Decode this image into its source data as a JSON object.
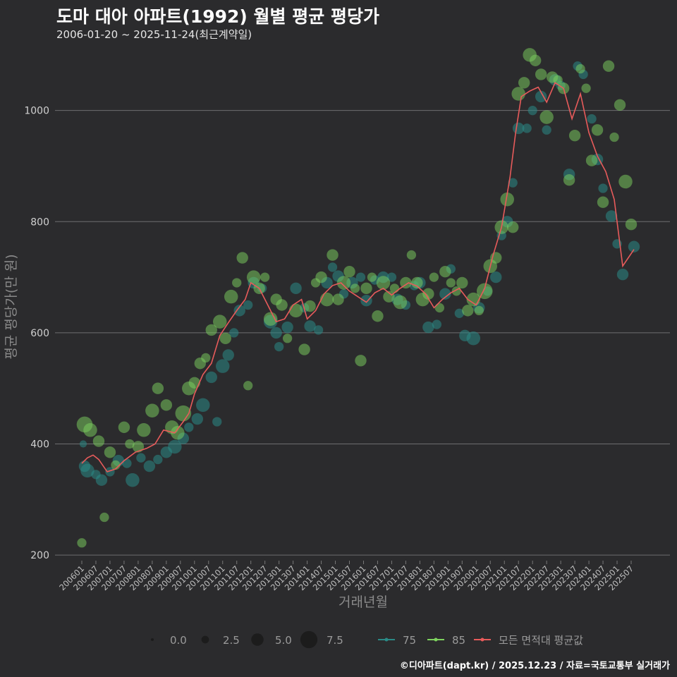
{
  "title": "도마 대아 아파트(1992) 월별 평균 평당가",
  "subtitle": "2006-01-20 ~ 2025-11-24(최근계약일)",
  "footer": "©디아파트(dapt.kr) / 2025.12.23 / 자료=국토교통부 실거래가",
  "colors": {
    "background": "#2b2b2d",
    "grid": "#6e6e70",
    "series_75": "#2a8a86",
    "series_85": "#7ed35f",
    "series_avg": "#e85b5b"
  },
  "chart_data": {
    "type": "scatter",
    "xlabel": "거래년월",
    "ylabel": "평균 평당가(만 원)",
    "ylim": [
      190,
      1110
    ],
    "yticks": [
      200,
      400,
      600,
      800,
      1000
    ],
    "xticks": [
      "200601",
      "200607",
      "200701",
      "200707",
      "200801",
      "200807",
      "200901",
      "200907",
      "201001",
      "201007",
      "201101",
      "201107",
      "201201",
      "201207",
      "201301",
      "201307",
      "201401",
      "201407",
      "201501",
      "201507",
      "201601",
      "201607",
      "201701",
      "201707",
      "201801",
      "201807",
      "201901",
      "201907",
      "202001",
      "202007",
      "202101",
      "202107",
      "202201",
      "202207",
      "202301",
      "202307",
      "202401",
      "202407",
      "202501",
      "202507"
    ],
    "size_legend": {
      "labels": [
        "0.0",
        "2.5",
        "5.0",
        "7.5"
      ],
      "values": [
        0,
        2.5,
        5,
        7.5
      ]
    },
    "series": [
      {
        "name": "75",
        "color": "#2a8a86"
      },
      {
        "name": "85",
        "color": "#7ed35f"
      },
      {
        "name": "모든 면적대 평균값",
        "color": "#e85b5b"
      }
    ],
    "avg_line": [
      [
        2006.0,
        365
      ],
      [
        2006.2,
        375
      ],
      [
        2006.4,
        380
      ],
      [
        2006.6,
        372
      ],
      [
        2006.9,
        350
      ],
      [
        2007.2,
        355
      ],
      [
        2007.5,
        370
      ],
      [
        2007.9,
        385
      ],
      [
        2008.3,
        392
      ],
      [
        2008.6,
        400
      ],
      [
        2008.9,
        425
      ],
      [
        2009.3,
        420
      ],
      [
        2009.6,
        440
      ],
      [
        2009.8,
        455
      ],
      [
        2010.0,
        490
      ],
      [
        2010.3,
        525
      ],
      [
        2010.6,
        545
      ],
      [
        2010.9,
        595
      ],
      [
        2011.2,
        618
      ],
      [
        2011.5,
        640
      ],
      [
        2011.8,
        660
      ],
      [
        2012.0,
        690
      ],
      [
        2012.3,
        680
      ],
      [
        2012.6,
        650
      ],
      [
        2012.9,
        620
      ],
      [
        2013.2,
        625
      ],
      [
        2013.5,
        650
      ],
      [
        2013.8,
        660
      ],
      [
        2014.0,
        625
      ],
      [
        2014.3,
        640
      ],
      [
        2014.6,
        670
      ],
      [
        2014.9,
        685
      ],
      [
        2015.2,
        690
      ],
      [
        2015.5,
        675
      ],
      [
        2015.8,
        665
      ],
      [
        2016.1,
        655
      ],
      [
        2016.4,
        672
      ],
      [
        2016.7,
        680
      ],
      [
        2017.0,
        668
      ],
      [
        2017.3,
        680
      ],
      [
        2017.6,
        690
      ],
      [
        2017.9,
        684
      ],
      [
        2018.2,
        670
      ],
      [
        2018.5,
        645
      ],
      [
        2018.8,
        660
      ],
      [
        2019.1,
        672
      ],
      [
        2019.4,
        680
      ],
      [
        2019.7,
        660
      ],
      [
        2020.0,
        650
      ],
      [
        2020.3,
        680
      ],
      [
        2020.6,
        740
      ],
      [
        2020.9,
        790
      ],
      [
        2021.2,
        880
      ],
      [
        2021.4,
        960
      ],
      [
        2021.6,
        1025
      ],
      [
        2021.9,
        1035
      ],
      [
        2022.2,
        1042
      ],
      [
        2022.5,
        1015
      ],
      [
        2022.8,
        1050
      ],
      [
        2023.1,
        1040
      ],
      [
        2023.4,
        985
      ],
      [
        2023.7,
        1030
      ],
      [
        2024.0,
        960
      ],
      [
        2024.3,
        918
      ],
      [
        2024.6,
        890
      ],
      [
        2024.9,
        840
      ],
      [
        2025.2,
        720
      ],
      [
        2025.6,
        750
      ]
    ],
    "points_75": [
      [
        2006.05,
        400,
        2
      ],
      [
        2006.1,
        360,
        4
      ],
      [
        2006.2,
        352,
        5
      ],
      [
        2006.5,
        345,
        3
      ],
      [
        2006.7,
        335,
        4
      ],
      [
        2007.0,
        350,
        3
      ],
      [
        2007.3,
        370,
        4
      ],
      [
        2007.6,
        365,
        3
      ],
      [
        2007.8,
        335,
        5
      ],
      [
        2008.1,
        375,
        3
      ],
      [
        2008.4,
        360,
        4
      ],
      [
        2008.7,
        372,
        3
      ],
      [
        2009.0,
        385,
        4
      ],
      [
        2009.3,
        395,
        5
      ],
      [
        2009.6,
        410,
        4
      ],
      [
        2009.8,
        430,
        3
      ],
      [
        2010.1,
        445,
        4
      ],
      [
        2010.3,
        470,
        5
      ],
      [
        2010.6,
        520,
        4
      ],
      [
        2010.8,
        440,
        3
      ],
      [
        2011.0,
        540,
        5
      ],
      [
        2011.2,
        560,
        4
      ],
      [
        2011.4,
        600,
        3
      ],
      [
        2011.6,
        640,
        4
      ],
      [
        2011.9,
        650,
        3
      ],
      [
        2012.1,
        690,
        4
      ],
      [
        2012.4,
        680,
        3
      ],
      [
        2012.7,
        620,
        5
      ],
      [
        2012.9,
        600,
        4
      ],
      [
        2013.0,
        575,
        3
      ],
      [
        2013.3,
        610,
        4
      ],
      [
        2013.6,
        680,
        4
      ],
      [
        2013.9,
        645,
        3
      ],
      [
        2014.1,
        612,
        4
      ],
      [
        2014.4,
        605,
        3
      ],
      [
        2014.7,
        690,
        4
      ],
      [
        2014.9,
        718,
        3
      ],
      [
        2015.1,
        702,
        4
      ],
      [
        2015.3,
        670,
        3
      ],
      [
        2015.6,
        690,
        4
      ],
      [
        2015.9,
        700,
        3
      ],
      [
        2016.1,
        658,
        4
      ],
      [
        2016.4,
        695,
        3
      ],
      [
        2016.7,
        700,
        4
      ],
      [
        2017.0,
        700,
        3
      ],
      [
        2017.2,
        660,
        4
      ],
      [
        2017.5,
        650,
        3
      ],
      [
        2017.8,
        685,
        3
      ],
      [
        2018.0,
        690,
        4
      ],
      [
        2018.3,
        610,
        4
      ],
      [
        2018.6,
        615,
        3
      ],
      [
        2018.9,
        670,
        4
      ],
      [
        2019.1,
        715,
        3
      ],
      [
        2019.4,
        635,
        3
      ],
      [
        2019.6,
        595,
        4
      ],
      [
        2019.9,
        590,
        5
      ],
      [
        2020.1,
        645,
        4
      ],
      [
        2020.4,
        675,
        3
      ],
      [
        2020.7,
        700,
        4
      ],
      [
        2020.9,
        775,
        3
      ],
      [
        2021.1,
        800,
        4
      ],
      [
        2021.3,
        870,
        3
      ],
      [
        2021.5,
        968,
        4
      ],
      [
        2021.8,
        968,
        3
      ],
      [
        2022.0,
        1000,
        3
      ],
      [
        2022.3,
        1025,
        4
      ],
      [
        2022.5,
        965,
        3
      ],
      [
        2022.8,
        1055,
        4
      ],
      [
        2023.0,
        1045,
        3
      ],
      [
        2023.3,
        885,
        4
      ],
      [
        2023.6,
        1080,
        3
      ],
      [
        2023.8,
        1065,
        3
      ],
      [
        2024.1,
        985,
        3
      ],
      [
        2024.3,
        912,
        4
      ],
      [
        2024.5,
        860,
        3
      ],
      [
        2024.8,
        810,
        4
      ],
      [
        2025.0,
        760,
        3
      ],
      [
        2025.2,
        705,
        4
      ],
      [
        2025.6,
        755,
        4
      ]
    ],
    "points_85": [
      [
        2006.0,
        222,
        3
      ],
      [
        2006.1,
        435,
        6
      ],
      [
        2006.3,
        425,
        5
      ],
      [
        2006.6,
        405,
        4
      ],
      [
        2006.8,
        268,
        3
      ],
      [
        2007.0,
        385,
        4
      ],
      [
        2007.2,
        362,
        3
      ],
      [
        2007.5,
        430,
        4
      ],
      [
        2007.7,
        400,
        3
      ],
      [
        2008.0,
        395,
        4
      ],
      [
        2008.2,
        425,
        5
      ],
      [
        2008.5,
        460,
        5
      ],
      [
        2008.7,
        500,
        4
      ],
      [
        2009.0,
        470,
        4
      ],
      [
        2009.2,
        430,
        5
      ],
      [
        2009.4,
        420,
        5
      ],
      [
        2009.6,
        455,
        6
      ],
      [
        2009.8,
        500,
        5
      ],
      [
        2010.0,
        510,
        4
      ],
      [
        2010.2,
        545,
        4
      ],
      [
        2010.4,
        555,
        3
      ],
      [
        2010.6,
        605,
        4
      ],
      [
        2010.9,
        620,
        5
      ],
      [
        2011.1,
        590,
        4
      ],
      [
        2011.3,
        665,
        5
      ],
      [
        2011.5,
        690,
        3
      ],
      [
        2011.7,
        735,
        4
      ],
      [
        2011.9,
        505,
        3
      ],
      [
        2012.1,
        700,
        5
      ],
      [
        2012.3,
        680,
        4
      ],
      [
        2012.5,
        700,
        3
      ],
      [
        2012.7,
        625,
        5
      ],
      [
        2012.9,
        660,
        4
      ],
      [
        2013.1,
        650,
        4
      ],
      [
        2013.3,
        590,
        3
      ],
      [
        2013.6,
        640,
        5
      ],
      [
        2013.9,
        570,
        4
      ],
      [
        2014.1,
        648,
        4
      ],
      [
        2014.3,
        690,
        3
      ],
      [
        2014.5,
        700,
        4
      ],
      [
        2014.7,
        660,
        5
      ],
      [
        2014.9,
        740,
        4
      ],
      [
        2015.1,
        660,
        4
      ],
      [
        2015.3,
        690,
        5
      ],
      [
        2015.5,
        710,
        4
      ],
      [
        2015.7,
        680,
        3
      ],
      [
        2015.9,
        550,
        4
      ],
      [
        2016.1,
        680,
        4
      ],
      [
        2016.3,
        700,
        3
      ],
      [
        2016.5,
        630,
        4
      ],
      [
        2016.7,
        690,
        5
      ],
      [
        2016.9,
        665,
        4
      ],
      [
        2017.1,
        680,
        3
      ],
      [
        2017.3,
        655,
        5
      ],
      [
        2017.5,
        690,
        4
      ],
      [
        2017.7,
        740,
        3
      ],
      [
        2017.9,
        690,
        4
      ],
      [
        2018.1,
        660,
        5
      ],
      [
        2018.3,
        670,
        4
      ],
      [
        2018.5,
        700,
        3
      ],
      [
        2018.7,
        645,
        3
      ],
      [
        2018.9,
        710,
        4
      ],
      [
        2019.1,
        690,
        3
      ],
      [
        2019.3,
        675,
        3
      ],
      [
        2019.5,
        690,
        4
      ],
      [
        2019.7,
        640,
        4
      ],
      [
        2019.9,
        660,
        5
      ],
      [
        2020.1,
        640,
        3
      ],
      [
        2020.3,
        675,
        6
      ],
      [
        2020.5,
        720,
        5
      ],
      [
        2020.7,
        735,
        4
      ],
      [
        2020.9,
        790,
        5
      ],
      [
        2021.1,
        840,
        5
      ],
      [
        2021.3,
        790,
        4
      ],
      [
        2021.5,
        1030,
        5
      ],
      [
        2021.7,
        1050,
        4
      ],
      [
        2021.9,
        1100,
        5
      ],
      [
        2022.1,
        1090,
        4
      ],
      [
        2022.3,
        1065,
        4
      ],
      [
        2022.5,
        988,
        5
      ],
      [
        2022.7,
        1060,
        4
      ],
      [
        2022.9,
        1055,
        3
      ],
      [
        2023.1,
        1040,
        4
      ],
      [
        2023.3,
        875,
        4
      ],
      [
        2023.5,
        955,
        4
      ],
      [
        2023.7,
        1075,
        3
      ],
      [
        2023.9,
        1040,
        3
      ],
      [
        2024.1,
        910,
        4
      ],
      [
        2024.3,
        965,
        4
      ],
      [
        2024.5,
        835,
        4
      ],
      [
        2024.7,
        1080,
        4
      ],
      [
        2024.9,
        952,
        3
      ],
      [
        2025.1,
        1010,
        4
      ],
      [
        2025.3,
        872,
        5
      ],
      [
        2025.5,
        795,
        4
      ]
    ]
  }
}
